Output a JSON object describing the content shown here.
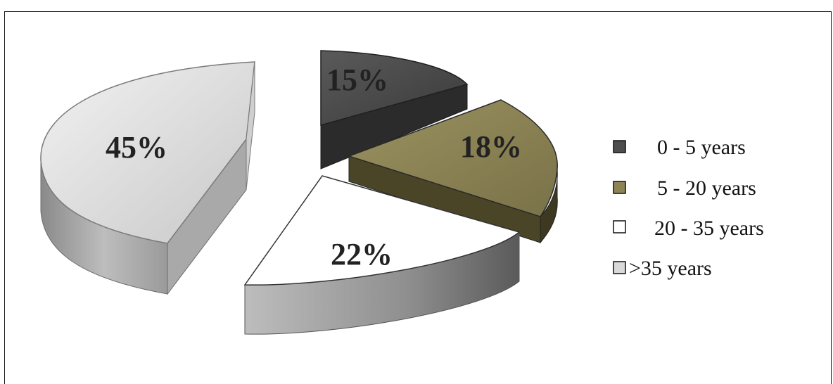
{
  "chart_data": {
    "type": "pie",
    "title": "",
    "categories": [
      "0 - 5 years",
      "5 - 20 years",
      "20 - 35 years",
      ">35 years"
    ],
    "values": [
      15,
      18,
      22,
      45
    ],
    "labels": [
      "15%",
      "18%",
      "22%",
      "45%"
    ],
    "colors": [
      "#4d4d4d",
      "#8c8455",
      "#ffffff",
      "#d9d9d9"
    ],
    "style": "3d-exploded",
    "legend": {
      "position": "right",
      "entries": [
        "0 - 5 years",
        "5 - 20 years",
        "20 - 35 years",
        ">35 years"
      ]
    }
  }
}
